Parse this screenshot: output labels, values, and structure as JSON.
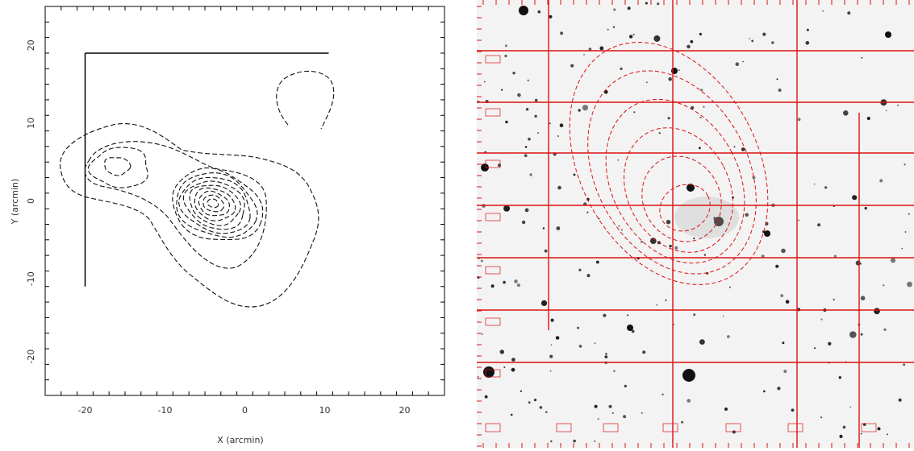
{
  "chart_data": [
    {
      "type": "contour",
      "xlabel": "X (arcmin)",
      "ylabel": "Y (arcmin)",
      "xlim": [
        -25,
        25
      ],
      "ylim": [
        -25,
        25
      ],
      "xticks": [
        -20,
        -10,
        0,
        10,
        20
      ],
      "xtick_labels": [
        "-20",
        "-10",
        "0",
        "10",
        "20"
      ],
      "yticks": [
        20,
        10,
        0,
        -10,
        -20
      ],
      "ytick_labels": [
        "20",
        "10",
        "0",
        "-10",
        "-20"
      ],
      "grid": false,
      "frame_lines": [
        {
          "x1": -20,
          "y1": 19,
          "x2": 10.5,
          "y2": 19
        },
        {
          "x1": -20,
          "y1": 19,
          "x2": -20,
          "y2": -11
        }
      ],
      "peaks": [
        {
          "x": -4,
          "y": -0.3,
          "levels": 9
        },
        {
          "x": -16,
          "y": 4.5,
          "levels": 2
        },
        {
          "x": 8.5,
          "y": 13.5,
          "levels": 1
        }
      ]
    },
    {
      "type": "image-overlay",
      "grid_color": "#dd1111",
      "contour_color": "#dd1111",
      "contour_levels": 6
    }
  ]
}
